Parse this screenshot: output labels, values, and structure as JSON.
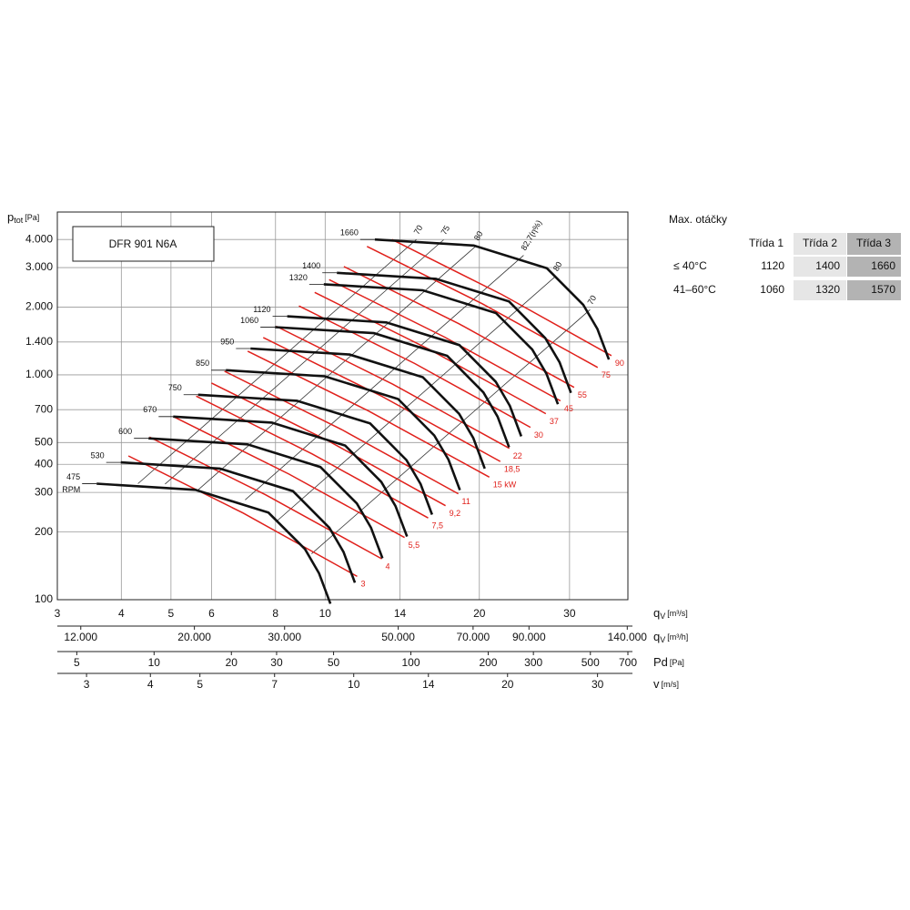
{
  "chart_data": {
    "type": "line",
    "title": "DFR 901 N6A",
    "ylabel": {
      "symbol": "p",
      "sub": "tot",
      "unit": "[Pa]"
    },
    "xlabel": {
      "symbol": "q",
      "sub": "V",
      "unit": "[m³/s]"
    },
    "xscale": "log",
    "yscale": "log",
    "grid": true,
    "xlim": [
      3,
      39
    ],
    "ylim": [
      100,
      5300
    ],
    "xticks": [
      3,
      4,
      5,
      6,
      8,
      10,
      14,
      20,
      30
    ],
    "yticks": [
      100,
      200,
      300,
      400,
      500,
      700,
      {
        "value": 1000,
        "label": "1.000"
      },
      {
        "value": 1400,
        "label": "1.400"
      },
      {
        "value": 2000,
        "label": "2.000"
      },
      {
        "value": 3000,
        "label": "3.000"
      },
      {
        "value": 4000,
        "label": "4.000"
      }
    ],
    "rpm_unit": "RPM",
    "series": [
      {
        "name": "1660",
        "color": "#111111",
        "x": [
          12.5,
          19.5,
          27.1,
          31.9,
          34,
          35.8
        ],
        "values": [
          4000,
          3760,
          2980,
          2050,
          1600,
          1170
        ]
      },
      {
        "name": "1400",
        "color": "#111111",
        "x": [
          10.54,
          16.45,
          22.86,
          26.9,
          28.68,
          30.19
        ],
        "values": [
          2845,
          2674,
          2120,
          1458,
          1138,
          832
        ]
      },
      {
        "name": "1320",
        "color": "#111111",
        "x": [
          9.94,
          15.51,
          21.55,
          25.37,
          27.04,
          28.47
        ],
        "values": [
          2529,
          2377,
          1884,
          1296,
          1012,
          740
        ]
      },
      {
        "name": "1120",
        "color": "#111111",
        "x": [
          8.43,
          13.16,
          18.28,
          21.52,
          22.94,
          24.15
        ],
        "values": [
          1821,
          1712,
          1357,
          933,
          728,
          533
        ]
      },
      {
        "name": "1060",
        "color": "#111111",
        "x": [
          7.98,
          12.45,
          17.31,
          20.37,
          21.71,
          22.86
        ],
        "values": [
          1631,
          1533,
          1215,
          836,
          652,
          477
        ]
      },
      {
        "name": "950",
        "color": "#111111",
        "x": [
          7.15,
          11.16,
          15.51,
          18.26,
          19.46,
          20.49
        ],
        "values": [
          1310,
          1231,
          976,
          671,
          524,
          383
        ]
      },
      {
        "name": "850",
        "color": "#111111",
        "x": [
          6.4,
          9.98,
          13.88,
          16.33,
          17.41,
          18.33
        ],
        "values": [
          1049,
          986,
          781,
          538,
          420,
          307
        ]
      },
      {
        "name": "750",
        "color": "#111111",
        "x": [
          5.65,
          8.81,
          12.24,
          14.41,
          15.36,
          16.17
        ],
        "values": [
          816,
          767,
          608,
          418,
          327,
          239
        ]
      },
      {
        "name": "670",
        "color": "#111111",
        "x": [
          5.05,
          7.87,
          10.94,
          12.87,
          13.72,
          14.45
        ],
        "values": [
          652,
          613,
          485,
          334,
          261,
          191
        ]
      },
      {
        "name": "600",
        "color": "#111111",
        "x": [
          4.52,
          7.05,
          9.79,
          11.53,
          12.29,
          12.94
        ],
        "values": [
          522,
          491,
          389,
          268,
          209,
          153
        ]
      },
      {
        "name": "530",
        "color": "#111111",
        "x": [
          3.99,
          6.23,
          8.65,
          10.19,
          10.86,
          11.43
        ],
        "values": [
          408,
          383,
          304,
          209,
          163,
          119
        ]
      },
      {
        "name": "475",
        "color": "#111111",
        "x": [
          3.58,
          5.58,
          7.75,
          9.13,
          9.73,
          10.24
        ],
        "values": [
          328,
          308,
          244,
          168,
          131,
          96
        ]
      }
    ],
    "power_series": [
      {
        "name": "3",
        "color": "#e0201b",
        "x": [
          4.13,
          6.91,
          11.55
        ],
        "values": [
          436,
          243,
          127
        ]
      },
      {
        "name": "4",
        "color": "#e0201b",
        "x": [
          4.54,
          7.65,
          12.9
        ],
        "values": [
          529,
          293,
          152
        ]
      },
      {
        "name": "5,5",
        "color": "#e0201b",
        "x": [
          5.05,
          8.5,
          14.29
        ],
        "values": [
          653,
          362,
          189
        ]
      },
      {
        "name": "7,5",
        "color": "#e0201b",
        "x": [
          5.6,
          9.43,
          15.89
        ],
        "values": [
          804,
          445,
          231
        ]
      },
      {
        "name": "9,2",
        "color": "#e0201b",
        "x": [
          6.0,
          10.15,
          17.18
        ],
        "values": [
          920,
          508,
          262
        ]
      },
      {
        "name": "11",
        "color": "#e0201b",
        "x": [
          6.36,
          10.76,
          18.19
        ],
        "values": [
          1038,
          572,
          296
        ]
      },
      {
        "name": "15 kW",
        "color": "#e0201b",
        "x": [
          7.06,
          12.15,
          20.92
        ],
        "values": [
          1275,
          691,
          351
        ]
      },
      {
        "name": "18,5",
        "color": "#e0201b",
        "x": [
          7.57,
          12.9,
          21.98
        ],
        "values": [
          1466,
          803,
          412
        ]
      },
      {
        "name": "22",
        "color": "#e0201b",
        "x": [
          8.02,
          13.55,
          22.89
        ],
        "values": [
          1646,
          909,
          471
        ]
      },
      {
        "name": "30",
        "color": "#e0201b",
        "x": [
          8.89,
          14.96,
          25.16
        ],
        "values": [
          2025,
          1123,
          584
        ]
      },
      {
        "name": "37",
        "color": "#e0201b",
        "x": [
          9.54,
          16.04,
          26.97
        ],
        "values": [
          2327,
          1292,
          672
        ]
      },
      {
        "name": "45",
        "color": "#e0201b",
        "x": [
          10.18,
          17.12,
          28.8
        ],
        "values": [
          2652,
          1472,
          766
        ]
      },
      {
        "name": "55",
        "color": "#e0201b",
        "x": [
          10.88,
          18.25,
          30.62
        ],
        "values": [
          3033,
          1688,
          880
        ]
      },
      {
        "name": "75",
        "color": "#e0201b",
        "x": [
          12.07,
          20.27,
          34.05
        ],
        "values": [
          3728,
          2072,
          1079
        ]
      },
      {
        "name": "90",
        "color": "#e0201b",
        "x": [
          13.5,
          22.1,
          36.22
        ],
        "values": [
          4000,
          2281,
          1218
        ]
      }
    ],
    "efficiency_series": [
      {
        "name": "70",
        "color": "#333333",
        "x": [
          4.31,
          15.07
        ],
        "values": [
          328,
          4000
        ]
      },
      {
        "name": "75",
        "color": "#333333",
        "x": [
          4.87,
          17.03
        ],
        "values": [
          327,
          3990
        ]
      },
      {
        "name": "80",
        "color": "#333333",
        "x": [
          5.65,
          19.75
        ],
        "values": [
          308,
          3760
        ]
      },
      {
        "name": "82,7(η%)",
        "color": "#333333",
        "x": [
          6.98,
          24.4
        ],
        "values": [
          278,
          3400
        ]
      },
      {
        "name": "80",
        "color": "#333333",
        "x": [
          8.07,
          28.2
        ],
        "values": [
          225,
          2750
        ]
      },
      {
        "name": "70",
        "color": "#333333",
        "x": [
          9.41,
          32.9
        ],
        "values": [
          160,
          1950
        ]
      }
    ],
    "secondary_axes": [
      {
        "symbol": "q",
        "sub": "V",
        "unit": "[m³/h]",
        "lim": [
          10800,
          140400
        ],
        "ticks": [
          {
            "value": 12000,
            "label": "12.000"
          },
          {
            "value": 20000,
            "label": "20.000"
          },
          {
            "value": 30000,
            "label": "30.000"
          },
          {
            "value": 50000,
            "label": "50.000"
          },
          {
            "value": 70000,
            "label": "70.000"
          },
          {
            "value": 90000,
            "label": "90.000"
          },
          {
            "value": 140000,
            "label": "140.000"
          }
        ]
      },
      {
        "symbol": "Pd",
        "sub": "",
        "unit": "[Pa]",
        "lim": [
          4.2,
          700
        ],
        "ticks": [
          5,
          10,
          20,
          30,
          50,
          100,
          200,
          300,
          500,
          700
        ]
      },
      {
        "symbol": "v",
        "sub": "",
        "unit": "[m/s]",
        "lim": [
          2.63,
          34.4
        ],
        "ticks": [
          3,
          4,
          5,
          7,
          10,
          14,
          20,
          30
        ]
      }
    ]
  },
  "table": {
    "title": "Max. otáčky",
    "header": [
      "Třída 1",
      "Třída 2",
      "Třída 3"
    ],
    "rows": [
      [
        "≤ 40°C",
        1120,
        1400,
        1660
      ],
      [
        "41–60°C",
        1060,
        1320,
        1570
      ]
    ]
  }
}
